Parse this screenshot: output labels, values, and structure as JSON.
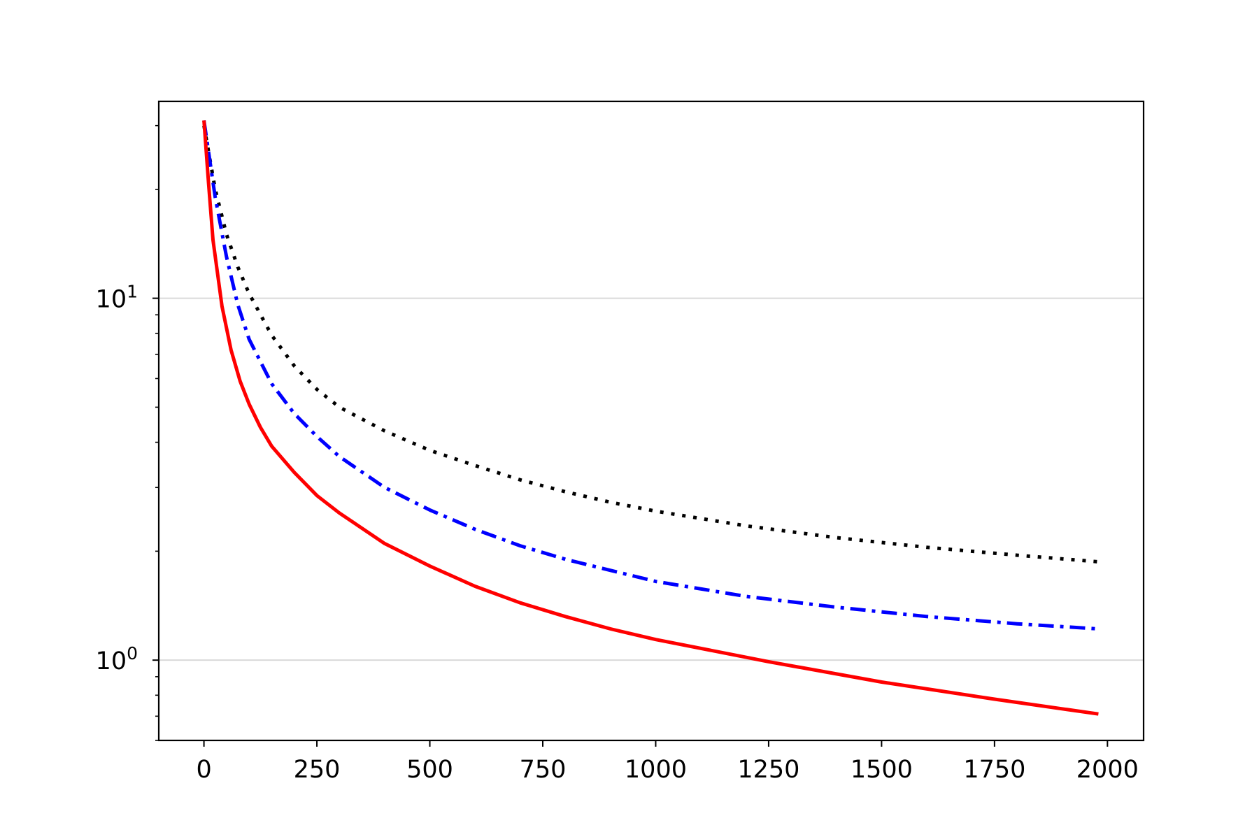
{
  "chart_data": {
    "type": "line",
    "title": "",
    "xlabel": "",
    "ylabel": "",
    "xlim": [
      -100,
      2080
    ],
    "ylim": [
      0.6,
      35
    ],
    "yscale": "log",
    "grid": "horizontal major lines",
    "x_ticks": [
      {
        "value": 0,
        "label": "0"
      },
      {
        "value": 250,
        "label": "250"
      },
      {
        "value": 500,
        "label": "500"
      },
      {
        "value": 750,
        "label": "750"
      },
      {
        "value": 1000,
        "label": "1000"
      },
      {
        "value": 1250,
        "label": "1250"
      },
      {
        "value": 1500,
        "label": "1500"
      },
      {
        "value": 1750,
        "label": "1750"
      },
      {
        "value": 2000,
        "label": "2000"
      }
    ],
    "y_ticks": [
      {
        "value": 1,
        "base": "10",
        "exp": "0"
      },
      {
        "value": 10,
        "base": "10",
        "exp": "1"
      }
    ],
    "series": [
      {
        "color": "#000000",
        "style": "dotted",
        "x": [
          0,
          25,
          50,
          75,
          100,
          150,
          200,
          250,
          300,
          400,
          500,
          600,
          700,
          800,
          900,
          1000,
          1200,
          1400,
          1600,
          1800,
          1980
        ],
        "y": [
          30,
          20,
          15,
          12.2,
          10.3,
          7.9,
          6.5,
          5.6,
          5.0,
          4.3,
          3.8,
          3.45,
          3.15,
          2.92,
          2.73,
          2.58,
          2.35,
          2.18,
          2.05,
          1.95,
          1.87
        ]
      },
      {
        "color": "#0000ff",
        "style": "dashdot",
        "x": [
          0,
          25,
          50,
          75,
          100,
          150,
          200,
          250,
          300,
          400,
          500,
          600,
          700,
          800,
          900,
          1000,
          1200,
          1400,
          1600,
          1800,
          1980
        ],
        "y": [
          31,
          19,
          13,
          9.6,
          7.7,
          5.8,
          4.8,
          4.15,
          3.65,
          3.0,
          2.6,
          2.3,
          2.07,
          1.9,
          1.77,
          1.65,
          1.5,
          1.4,
          1.32,
          1.26,
          1.22
        ]
      },
      {
        "color": "#ff0000",
        "style": "solid",
        "x": [
          0,
          10,
          20,
          40,
          60,
          80,
          100,
          125,
          150,
          200,
          250,
          300,
          400,
          500,
          600,
          700,
          800,
          900,
          1000,
          1250,
          1500,
          1750,
          1980
        ],
        "y": [
          31,
          21,
          14.5,
          9.5,
          7.2,
          5.9,
          5.1,
          4.4,
          3.9,
          3.3,
          2.85,
          2.55,
          2.1,
          1.82,
          1.6,
          1.44,
          1.32,
          1.22,
          1.14,
          0.99,
          0.87,
          0.78,
          0.71
        ]
      }
    ]
  }
}
